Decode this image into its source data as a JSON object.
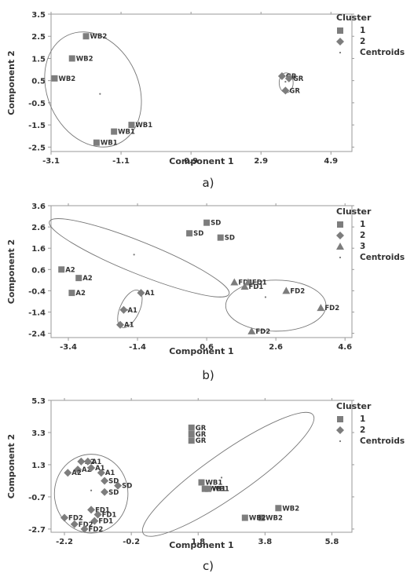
{
  "chart_data": [
    {
      "type": "scatter",
      "caption": "a)",
      "xlabel": "Component 1",
      "ylabel": "Component 2",
      "xlim": [
        -3.1,
        5.5
      ],
      "ylim": [
        -2.7,
        3.5
      ],
      "xticks": [
        "-3.1",
        "-1.1",
        "0.9",
        "2.9",
        "4.9"
      ],
      "yticks": [
        "3.5",
        "2.5",
        "1.5",
        "0.5",
        "-0.5",
        "-1.5",
        "-2.5"
      ],
      "legend": {
        "title": "Cluster",
        "entries": [
          "1",
          "2",
          "Centroids"
        ]
      },
      "points": [
        {
          "cluster": 1,
          "label": "WB2",
          "x": -2.1,
          "y": 2.5
        },
        {
          "cluster": 1,
          "label": "WB2",
          "x": -2.5,
          "y": 1.5
        },
        {
          "cluster": 1,
          "label": "WB2",
          "x": -3.0,
          "y": 0.6
        },
        {
          "cluster": 1,
          "label": "WB1",
          "x": -0.8,
          "y": -1.5
        },
        {
          "cluster": 1,
          "label": "WB1",
          "x": -1.3,
          "y": -1.8
        },
        {
          "cluster": 1,
          "label": "WB1",
          "x": -1.8,
          "y": -2.3
        },
        {
          "cluster": 2,
          "label": "GR",
          "x": 3.5,
          "y": 0.7
        },
        {
          "cluster": 2,
          "label": "GR",
          "x": 3.7,
          "y": 0.6
        },
        {
          "cluster": 2,
          "label": "GR",
          "x": 3.6,
          "y": 0.05
        }
      ],
      "centroids": [
        {
          "x": -1.7,
          "y": -0.1
        },
        {
          "x": 3.6,
          "y": 0.45
        }
      ],
      "ellipses": [
        {
          "cx": -1.9,
          "cy": 0.1,
          "rx": 1.3,
          "ry": 2.7,
          "rot": 25
        },
        {
          "cx": 3.62,
          "cy": 0.4,
          "rx": 0.2,
          "ry": 0.45,
          "rot": 0
        }
      ]
    },
    {
      "type": "scatter",
      "caption": "b)",
      "xlabel": "Component 1",
      "ylabel": "Component 2",
      "xlim": [
        -3.9,
        4.8
      ],
      "ylim": [
        -2.6,
        3.6
      ],
      "xticks": [
        "-3.4",
        "-1.4",
        "0.6",
        "2.6",
        "4.6"
      ],
      "yticks": [
        "3.6",
        "2.6",
        "1.6",
        "0.6",
        "-0.4",
        "-1.4",
        "-2.4"
      ],
      "legend": {
        "title": "Cluster",
        "entries": [
          "1",
          "2",
          "3",
          "Centroids"
        ]
      },
      "points": [
        {
          "cluster": 1,
          "label": "SD",
          "x": 0.6,
          "y": 2.8
        },
        {
          "cluster": 1,
          "label": "SD",
          "x": 0.1,
          "y": 2.3
        },
        {
          "cluster": 1,
          "label": "SD",
          "x": 1.0,
          "y": 2.1
        },
        {
          "cluster": 1,
          "label": "A2",
          "x": -3.6,
          "y": 0.6
        },
        {
          "cluster": 1,
          "label": "A2",
          "x": -3.1,
          "y": 0.2
        },
        {
          "cluster": 1,
          "label": "A2",
          "x": -3.3,
          "y": -0.5
        },
        {
          "cluster": 2,
          "label": "A1",
          "x": -1.3,
          "y": -0.5
        },
        {
          "cluster": 2,
          "label": "A1",
          "x": -1.8,
          "y": -1.3
        },
        {
          "cluster": 2,
          "label": "A1",
          "x": -1.9,
          "y": -2.0
        },
        {
          "cluster": 3,
          "label": "FD1",
          "x": 1.4,
          "y": 0.0
        },
        {
          "cluster": 3,
          "label": "FD1",
          "x": 1.8,
          "y": 0.0
        },
        {
          "cluster": 3,
          "label": "FD1",
          "x": 1.7,
          "y": -0.2
        },
        {
          "cluster": 3,
          "label": "FD2",
          "x": 2.9,
          "y": -0.4
        },
        {
          "cluster": 3,
          "label": "FD2",
          "x": 3.9,
          "y": -1.2
        },
        {
          "cluster": 3,
          "label": "FD2",
          "x": 1.9,
          "y": -2.3
        }
      ],
      "centroids": [
        {
          "x": -1.5,
          "y": 1.3
        },
        {
          "x": -1.7,
          "y": -1.3
        },
        {
          "x": 2.3,
          "y": -0.7
        }
      ],
      "ellipses": [
        {
          "cx": -1.35,
          "cy": 1.15,
          "rx": 2.8,
          "ry": 0.75,
          "rot": -22
        },
        {
          "cx": -1.62,
          "cy": -1.25,
          "rx": 0.28,
          "ry": 0.95,
          "rot": -25
        },
        {
          "cx": 2.6,
          "cy": -1.1,
          "rx": 1.45,
          "ry": 1.2,
          "rot": 0
        }
      ]
    },
    {
      "type": "scatter",
      "caption": "c)",
      "xlabel": "Component 1",
      "ylabel": "Component 2",
      "xlim": [
        -2.6,
        6.4
      ],
      "ylim": [
        -2.9,
        5.3
      ],
      "xticks": [
        "-2.2",
        "-0.2",
        "1.8",
        "3.8",
        "5.8"
      ],
      "yticks": [
        "5.3",
        "3.3",
        "1.3",
        "-0.7",
        "-2.7"
      ],
      "legend": {
        "title": "Cluster",
        "entries": [
          "1",
          "2",
          "Centroids"
        ]
      },
      "points": [
        {
          "cluster": 1,
          "label": "GR",
          "x": 1.6,
          "y": 3.6
        },
        {
          "cluster": 1,
          "label": "GR",
          "x": 1.6,
          "y": 3.2
        },
        {
          "cluster": 1,
          "label": "GR",
          "x": 1.6,
          "y": 2.8
        },
        {
          "cluster": 1,
          "label": "WB1",
          "x": 1.9,
          "y": 0.2
        },
        {
          "cluster": 1,
          "label": "WB1",
          "x": 2.0,
          "y": -0.2
        },
        {
          "cluster": 1,
          "label": "WB1",
          "x": 2.1,
          "y": -0.2
        },
        {
          "cluster": 1,
          "label": "WB2",
          "x": 4.2,
          "y": -1.4
        },
        {
          "cluster": 1,
          "label": "WB2",
          "x": 3.7,
          "y": -2.0
        },
        {
          "cluster": 1,
          "label": "WB2",
          "x": 3.2,
          "y": -2.0
        },
        {
          "cluster": 2,
          "label": "A2",
          "x": -1.7,
          "y": 1.5
        },
        {
          "cluster": 2,
          "label": "A2",
          "x": -1.8,
          "y": 1.0
        },
        {
          "cluster": 2,
          "label": "A2",
          "x": -2.1,
          "y": 0.8
        },
        {
          "cluster": 2,
          "label": "A1",
          "x": -1.5,
          "y": 1.5
        },
        {
          "cluster": 2,
          "label": "A1",
          "x": -1.4,
          "y": 1.1
        },
        {
          "cluster": 2,
          "label": "A1",
          "x": -1.1,
          "y": 0.8
        },
        {
          "cluster": 2,
          "label": "SD",
          "x": -1.0,
          "y": 0.3
        },
        {
          "cluster": 2,
          "label": "SD",
          "x": -0.6,
          "y": 0.0
        },
        {
          "cluster": 2,
          "label": "SD",
          "x": -1.0,
          "y": -0.4
        },
        {
          "cluster": 2,
          "label": "FD1",
          "x": -1.4,
          "y": -1.5
        },
        {
          "cluster": 2,
          "label": "FD1",
          "x": -1.2,
          "y": -1.8
        },
        {
          "cluster": 2,
          "label": "FD1",
          "x": -1.3,
          "y": -2.2
        },
        {
          "cluster": 2,
          "label": "FD2",
          "x": -2.2,
          "y": -2.0
        },
        {
          "cluster": 2,
          "label": "FD2",
          "x": -1.9,
          "y": -2.4
        },
        {
          "cluster": 2,
          "label": "FD2",
          "x": -1.6,
          "y": -2.7
        }
      ],
      "centroids": [
        {
          "x": -1.4,
          "y": -0.3
        },
        {
          "x": 2.5,
          "y": 0.5
        }
      ],
      "ellipses": [
        {
          "cx": -1.4,
          "cy": -0.5,
          "rx": 1.1,
          "ry": 2.45,
          "rot": 0
        },
        {
          "cx": 2.7,
          "cy": 0.7,
          "rx": 3.1,
          "ry": 1.35,
          "rot": 35
        }
      ]
    }
  ]
}
